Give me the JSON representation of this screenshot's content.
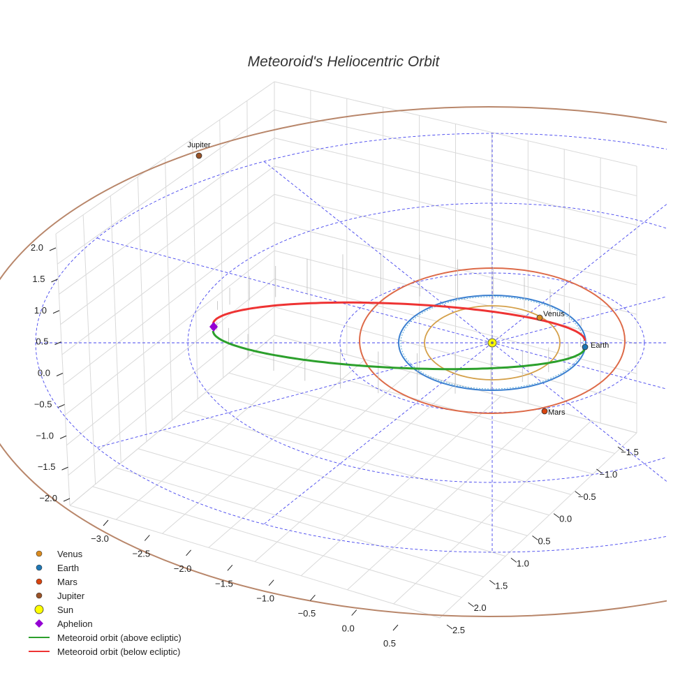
{
  "chart_data": {
    "type": "3d-orbit",
    "title": "Meteoroid's Heliocentric Orbit",
    "axes": {
      "x": {
        "ticks": [
          -3.0,
          -2.5,
          -2.0,
          -1.5,
          -1.0,
          -0.5,
          0.0,
          0.5
        ],
        "tick_labels": [
          "−3.0",
          "−2.5",
          "−2.0",
          "−1.5",
          "−1.0",
          "−0.5",
          "0.0",
          "0.5"
        ],
        "range": [
          -3.3,
          0.75
        ]
      },
      "y": {
        "ticks": [
          -1.5,
          -1.0,
          -0.5,
          0.0,
          0.5,
          1.0,
          1.5,
          2.0,
          2.5
        ],
        "tick_labels": [
          "−1.5",
          "−1.0",
          "−0.5",
          "0.0",
          "0.5",
          "1.0",
          "1.5",
          "2.0",
          "2.5"
        ],
        "range": [
          -1.9,
          2.7
        ]
      },
      "z": {
        "ticks": [
          -2.0,
          -1.5,
          -1.0,
          -0.5,
          0.0,
          0.5,
          1.0,
          1.5,
          2.0
        ],
        "tick_labels": [
          "−2.0",
          "−1.5",
          "−1.0",
          "−0.5",
          "0.0",
          "0.5",
          "1.0",
          "1.5",
          "2.0"
        ],
        "range": [
          -2.2,
          2.2
        ]
      }
    },
    "sun": {
      "name": "Sun",
      "x": 0,
      "y": 0,
      "z": 0,
      "color": "#ffff00"
    },
    "planets": [
      {
        "name": "Venus",
        "radius": 0.723,
        "angle_deg": 118,
        "color": "#d98a1f",
        "orbit_color": "#d4a04a"
      },
      {
        "name": "Earth",
        "radius": 1.0,
        "angle_deg": 90,
        "color": "#1f77b4",
        "orbit_color": "#3a7fd0"
      },
      {
        "name": "Mars",
        "radius": 1.524,
        "angle_deg": 340,
        "color": "#d8440f",
        "orbit_color": "#dd6a48"
      },
      {
        "name": "Jupiter",
        "radius": 5.2,
        "angle_deg": 186,
        "color": "#9a5328",
        "orbit_color": "#b8866a"
      }
    ],
    "meteoroid": {
      "perihelion": 1.0,
      "aphelion": 3.05,
      "inclination_note": "small tilt, ascending node at perihelion",
      "aphelion_marker": {
        "name": "Aphelion",
        "color": "#9400d3"
      },
      "above_color": "#2ca02c",
      "below_color": "#ee3333"
    },
    "ecliptic_grid": {
      "circle_radii": [
        1,
        2,
        3
      ],
      "spoke_count": 12,
      "color": "#4444ee"
    },
    "legend": [
      {
        "label": "Venus",
        "marker": "circle",
        "color": "#d98a1f"
      },
      {
        "label": "Earth",
        "marker": "circle",
        "color": "#1f77b4"
      },
      {
        "label": "Mars",
        "marker": "circle",
        "color": "#d8440f"
      },
      {
        "label": "Jupiter",
        "marker": "circle",
        "color": "#9a5328"
      },
      {
        "label": "Sun",
        "marker": "big-circle",
        "color": "#ffff00"
      },
      {
        "label": "Aphelion",
        "marker": "diamond",
        "color": "#9400d3"
      },
      {
        "label": "Meteoroid orbit (above ecliptic)",
        "marker": "line",
        "color": "#2ca02c"
      },
      {
        "label": "Meteoroid orbit (below ecliptic)",
        "marker": "line",
        "color": "#ee3333"
      }
    ]
  }
}
